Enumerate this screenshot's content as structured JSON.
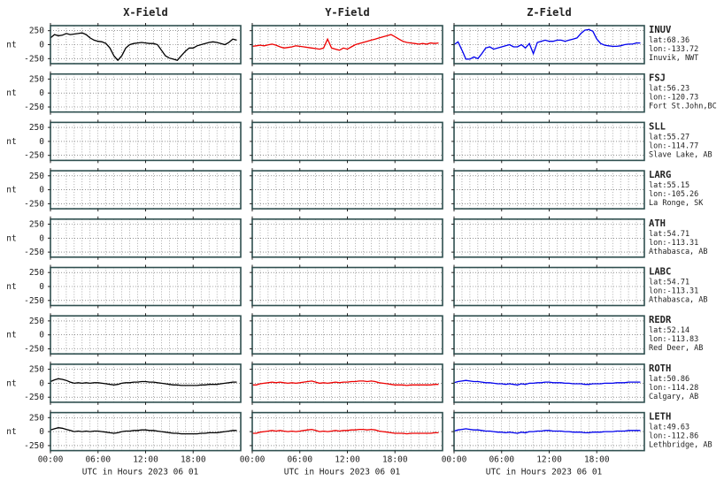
{
  "chart_data": {
    "type": "line",
    "column_titles": [
      "X-Field",
      "Y-Field",
      "Z-Field"
    ],
    "series_colors": [
      "#000000",
      "#ee0000",
      "#0000ee"
    ],
    "ylabel": "nt",
    "ylim": [
      -340,
      340
    ],
    "yticks": [
      250,
      0,
      -250
    ],
    "y_tick_labels": [
      "250",
      "0",
      "-250"
    ],
    "xlim": [
      0,
      24
    ],
    "xticks": [
      0,
      6,
      12,
      18
    ],
    "x_tick_labels": [
      "00:00",
      "06:00",
      "12:00",
      "18:00"
    ],
    "xlabel": "UTC in Hours  2023 06 01",
    "grid": true,
    "stations": [
      {
        "code": "INUV",
        "lat": "lat:68.36",
        "lon": "lon:-133.72",
        "place": "Inuvik, NWT",
        "x": [
          0,
          0.5,
          1,
          1.5,
          2,
          2.5,
          3,
          3.5,
          4,
          4.5,
          5,
          5.5,
          6,
          6.5,
          7,
          7.5,
          8,
          8.5,
          9,
          9.5,
          10,
          10.5,
          11,
          11.5,
          12,
          12.5,
          13,
          13.5,
          14,
          14.5,
          15,
          15.5,
          16,
          16.5,
          17,
          17.5,
          18,
          18.5,
          19,
          19.5,
          20,
          20.5,
          21,
          21.5,
          22,
          22.5,
          23,
          23.5
        ],
        "X": [
          120,
          180,
          160,
          170,
          200,
          180,
          190,
          200,
          210,
          180,
          120,
          80,
          60,
          50,
          20,
          -60,
          -200,
          -280,
          -200,
          -60,
          0,
          20,
          30,
          40,
          30,
          20,
          20,
          0,
          -100,
          -200,
          -240,
          -260,
          -280,
          -200,
          -120,
          -60,
          -60,
          -20,
          0,
          20,
          40,
          50,
          40,
          20,
          0,
          40,
          100,
          80
        ],
        "Y": [
          -30,
          -20,
          -10,
          -20,
          -5,
          10,
          -10,
          -40,
          -60,
          -50,
          -40,
          -20,
          -30,
          -40,
          -50,
          -60,
          -70,
          -80,
          -60,
          100,
          -60,
          -80,
          -100,
          -60,
          -80,
          -40,
          0,
          20,
          40,
          60,
          80,
          100,
          120,
          140,
          160,
          180,
          140,
          100,
          60,
          40,
          30,
          20,
          10,
          20,
          10,
          30,
          20,
          30
        ],
        "Z": [
          0,
          50,
          -100,
          -260,
          -260,
          -220,
          -250,
          -160,
          -60,
          -40,
          -80,
          -60,
          -40,
          -20,
          0,
          -40,
          -40,
          0,
          -60,
          20,
          -160,
          40,
          60,
          80,
          60,
          60,
          80,
          80,
          60,
          80,
          100,
          120,
          200,
          260,
          270,
          240,
          100,
          20,
          -10,
          -20,
          -30,
          -30,
          -20,
          0,
          10,
          10,
          30,
          30
        ]
      },
      {
        "code": "FSJ",
        "lat": "lat:56.23",
        "lon": "lon:-120.73",
        "place": "Fort St.John,BC",
        "x": [],
        "X": [],
        "Y": [],
        "Z": []
      },
      {
        "code": "SLL",
        "lat": "lat:55.27",
        "lon": "lon:-114.77",
        "place": "Slave Lake, AB",
        "x": [],
        "X": [],
        "Y": [],
        "Z": []
      },
      {
        "code": "LARG",
        "lat": "lat:55.15",
        "lon": "lon:-105.26",
        "place": "La Ronge, SK",
        "x": [],
        "X": [],
        "Y": [],
        "Z": []
      },
      {
        "code": "ATH",
        "lat": "lat:54.71",
        "lon": "lon:-113.31",
        "place": "Athabasca, AB",
        "x": [],
        "X": [],
        "Y": [],
        "Z": []
      },
      {
        "code": "LABC",
        "lat": "lat:54.71",
        "lon": "lon:-113.31",
        "place": "Athabasca, AB",
        "x": [],
        "X": [],
        "Y": [],
        "Z": []
      },
      {
        "code": "REDR",
        "lat": "lat:52.14",
        "lon": "lon:-113.83",
        "place": "Red Deer, AB",
        "x": [],
        "X": [],
        "Y": [],
        "Z": []
      },
      {
        "code": "ROTH",
        "lat": "lat:50.86",
        "lon": "lon:-114.28",
        "place": "Calgary, AB",
        "x": [
          0,
          0.5,
          1,
          1.5,
          2,
          2.5,
          3,
          3.5,
          4,
          4.5,
          5,
          5.5,
          6,
          6.5,
          7,
          7.5,
          8,
          8.5,
          9,
          9.5,
          10,
          10.5,
          11,
          11.5,
          12,
          12.5,
          13,
          13.5,
          14,
          14.5,
          15,
          15.5,
          16,
          16.5,
          17,
          17.5,
          18,
          18.5,
          19,
          19.5,
          20,
          20.5,
          21,
          21.5,
          22,
          22.5,
          23,
          23.5
        ],
        "X": [
          30,
          60,
          80,
          70,
          50,
          20,
          0,
          10,
          0,
          10,
          0,
          10,
          10,
          0,
          -10,
          -20,
          -30,
          -20,
          0,
          10,
          10,
          20,
          20,
          30,
          30,
          20,
          20,
          10,
          0,
          -10,
          -20,
          -30,
          -30,
          -40,
          -40,
          -40,
          -40,
          -40,
          -30,
          -30,
          -20,
          -20,
          -20,
          -10,
          0,
          10,
          20,
          20
        ],
        "Y": [
          -30,
          -30,
          -10,
          0,
          10,
          20,
          10,
          20,
          10,
          0,
          10,
          0,
          10,
          20,
          30,
          40,
          20,
          0,
          10,
          0,
          10,
          20,
          10,
          20,
          20,
          30,
          30,
          40,
          40,
          30,
          40,
          30,
          10,
          0,
          -10,
          -20,
          -30,
          -30,
          -30,
          -40,
          -30,
          -30,
          -30,
          -30,
          -30,
          -30,
          -20,
          -20
        ],
        "Z": [
          10,
          30,
          40,
          50,
          40,
          30,
          30,
          20,
          10,
          10,
          0,
          -10,
          -10,
          -20,
          -10,
          -20,
          -30,
          -10,
          -20,
          0,
          0,
          10,
          10,
          20,
          20,
          10,
          10,
          10,
          0,
          0,
          -10,
          -10,
          -10,
          -20,
          -20,
          -10,
          -10,
          -10,
          0,
          0,
          0,
          10,
          10,
          10,
          20,
          20,
          20,
          20
        ]
      },
      {
        "code": "LETH",
        "lat": "lat:49.63",
        "lon": "lon:-112.86",
        "place": "Lethbridge, AB",
        "x": [
          0,
          0.5,
          1,
          1.5,
          2,
          2.5,
          3,
          3.5,
          4,
          4.5,
          5,
          5.5,
          6,
          6.5,
          7,
          7.5,
          8,
          8.5,
          9,
          9.5,
          10,
          10.5,
          11,
          11.5,
          12,
          12.5,
          13,
          13.5,
          14,
          14.5,
          15,
          15.5,
          16,
          16.5,
          17,
          17.5,
          18,
          18.5,
          19,
          19.5,
          20,
          20.5,
          21,
          21.5,
          22,
          22.5,
          23,
          23.5
        ],
        "X": [
          30,
          50,
          70,
          60,
          40,
          20,
          0,
          10,
          0,
          10,
          0,
          10,
          10,
          0,
          -10,
          -20,
          -30,
          -20,
          0,
          10,
          10,
          20,
          20,
          30,
          30,
          20,
          20,
          10,
          0,
          -10,
          -20,
          -30,
          -30,
          -40,
          -40,
          -40,
          -40,
          -40,
          -30,
          -30,
          -20,
          -20,
          -20,
          -10,
          0,
          10,
          20,
          20
        ],
        "Y": [
          -30,
          -30,
          -10,
          0,
          10,
          20,
          10,
          20,
          10,
          0,
          10,
          0,
          10,
          20,
          30,
          40,
          20,
          0,
          10,
          0,
          10,
          20,
          10,
          20,
          20,
          30,
          30,
          40,
          40,
          30,
          40,
          30,
          10,
          0,
          -10,
          -20,
          -30,
          -30,
          -30,
          -40,
          -30,
          -30,
          -30,
          -30,
          -30,
          -30,
          -20,
          -20
        ],
        "Z": [
          10,
          30,
          40,
          50,
          40,
          30,
          30,
          20,
          10,
          10,
          0,
          -10,
          -10,
          -20,
          -10,
          -20,
          -30,
          -10,
          -20,
          0,
          0,
          10,
          10,
          20,
          20,
          10,
          10,
          10,
          0,
          0,
          -10,
          -10,
          -10,
          -20,
          -20,
          -10,
          -10,
          -10,
          0,
          0,
          0,
          10,
          10,
          10,
          20,
          20,
          20,
          20
        ]
      }
    ]
  }
}
